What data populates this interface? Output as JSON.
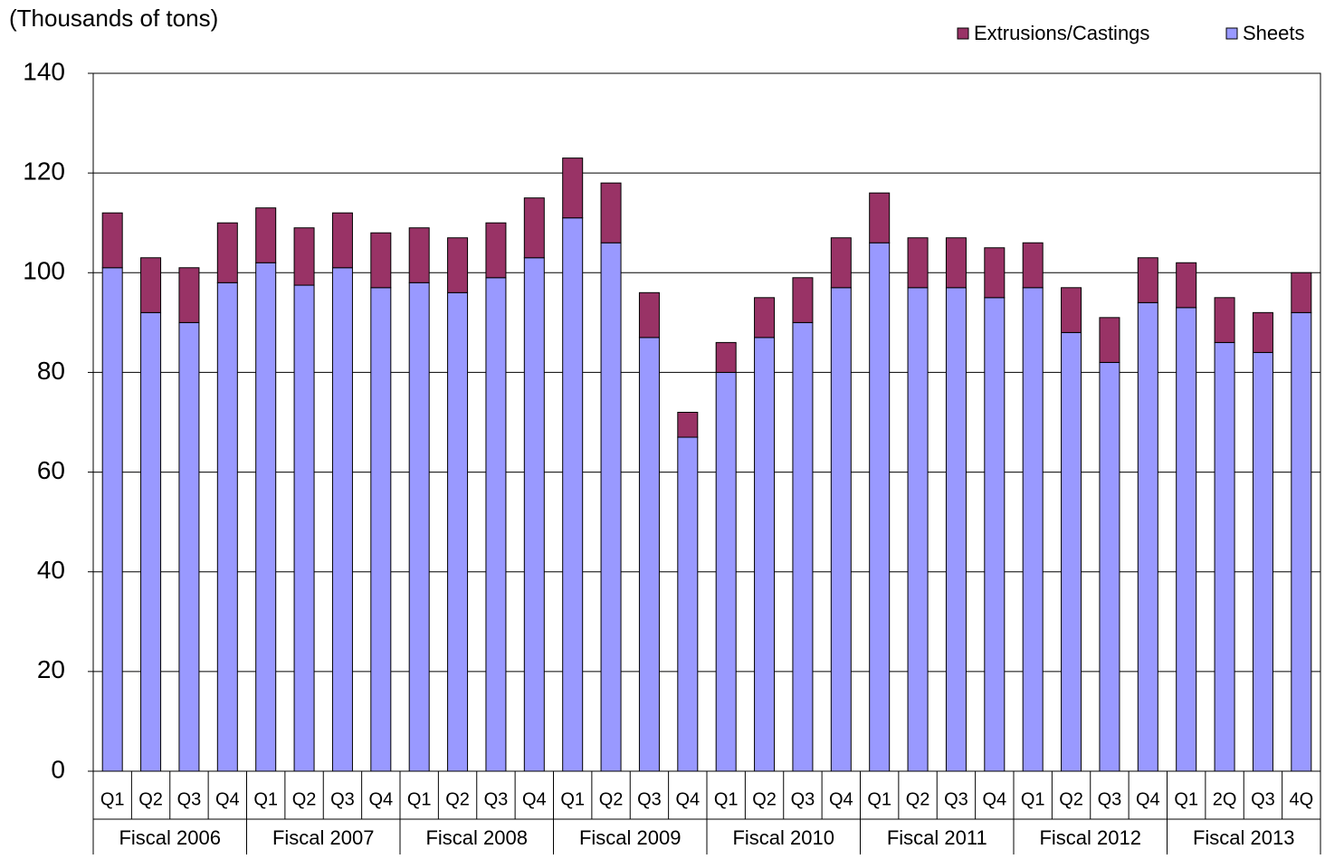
{
  "chart_data": {
    "type": "stacked-bar",
    "axis_title": "(Thousands  of tons)",
    "groups": [
      {
        "label": "Fiscal 2006",
        "categories": [
          "Q1",
          "Q2",
          "Q3",
          "Q4"
        ]
      },
      {
        "label": "Fiscal 2007",
        "categories": [
          "Q1",
          "Q2",
          "Q3",
          "Q4"
        ]
      },
      {
        "label": "Fiscal 2008",
        "categories": [
          "Q1",
          "Q2",
          "Q3",
          "Q4"
        ]
      },
      {
        "label": "Fiscal 2009",
        "categories": [
          "Q1",
          "Q2",
          "Q3",
          "Q4"
        ]
      },
      {
        "label": "Fiscal 2010",
        "categories": [
          "Q1",
          "Q2",
          "Q3",
          "Q4"
        ]
      },
      {
        "label": "Fiscal 2011",
        "categories": [
          "Q1",
          "Q2",
          "Q3",
          "Q4"
        ]
      },
      {
        "label": "Fiscal 2012",
        "categories": [
          "Q1",
          "Q2",
          "Q3",
          "Q4"
        ]
      },
      {
        "label": "Fiscal 2013",
        "categories": [
          "Q1",
          "2Q",
          "Q3",
          "4Q"
        ]
      }
    ],
    "series": [
      {
        "name": "Sheets",
        "color": "#9999ff",
        "values": [
          101,
          92,
          90,
          98,
          102,
          97.5,
          101,
          97,
          98,
          96,
          99,
          103,
          111,
          106,
          87,
          67,
          80,
          87,
          90,
          97,
          106,
          97,
          97,
          95,
          97,
          88,
          82,
          94,
          93,
          86,
          84,
          92
        ]
      },
      {
        "name": "Extrusions/Castings",
        "color": "#993366",
        "values": [
          11,
          11,
          11,
          12,
          11,
          11.5,
          11,
          11,
          11,
          11,
          11,
          12,
          12,
          12,
          9,
          5,
          6,
          8,
          9,
          10,
          10,
          10,
          10,
          10,
          9,
          9,
          9,
          9,
          9,
          9,
          8,
          8
        ]
      }
    ],
    "ylim": [
      0,
      140
    ],
    "yticks": [
      0,
      20,
      40,
      60,
      80,
      100,
      120,
      140
    ],
    "grid": true
  }
}
